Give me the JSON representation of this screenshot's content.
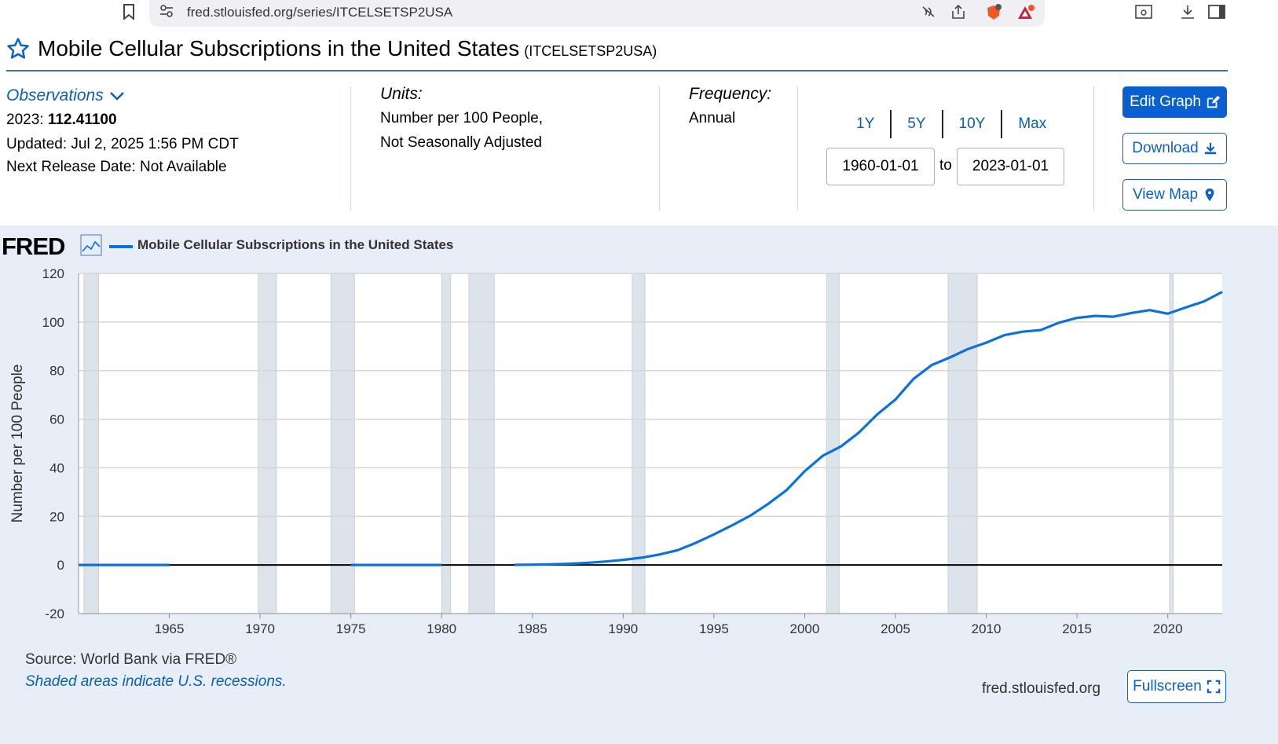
{
  "browser": {
    "url": "fred.stlouisfed.org/series/ITCELSETSP2USA"
  },
  "header": {
    "title": "Mobile Cellular Subscriptions in the United States",
    "series_id": "(ITCELSETSP2USA)"
  },
  "observations": {
    "label": "Observations",
    "latest_year": "2023:",
    "latest_value": "112.41100",
    "updated": "Updated: Jul 2, 2025 1:56 PM CDT",
    "next_release": "Next Release Date: Not Available"
  },
  "units": {
    "label": "Units:",
    "line1": "Number per 100 People,",
    "line2": "Not Seasonally Adjusted"
  },
  "frequency": {
    "label": "Frequency:",
    "value": "Annual"
  },
  "range": {
    "buttons": [
      "1Y",
      "5Y",
      "10Y",
      "Max"
    ],
    "start": "1960-01-01",
    "to": "to",
    "end": "2023-01-01"
  },
  "actions": {
    "edit": "Edit Graph",
    "download": "Download",
    "map": "View Map",
    "fullscreen": "Fullscreen"
  },
  "footer": {
    "source": "Source: World Bank via FRED®",
    "recession_note": "Shaded areas indicate U.S. recessions.",
    "site": "fred.stlouisfed.org"
  },
  "colors": {
    "accent": "#0a5fd1",
    "series": "#0b72d9",
    "panel": "#e7eef7",
    "recession": "#dde3ea"
  },
  "chart_data": {
    "type": "line",
    "legend": "Mobile Cellular Subscriptions in the United States",
    "ylabel": "Number per 100 People",
    "xlabel": "",
    "ylim": [
      -20,
      120
    ],
    "yticks": [
      120,
      100,
      80,
      60,
      40,
      20,
      0,
      -20
    ],
    "xlim": [
      1960,
      2023
    ],
    "xticks": [
      1965,
      1970,
      1975,
      1980,
      1985,
      1990,
      1995,
      2000,
      2005,
      2010,
      2015,
      2020
    ],
    "recessions": [
      [
        1960.3,
        1961.1
      ],
      [
        1969.9,
        1970.9
      ],
      [
        1973.9,
        1975.2
      ],
      [
        1980.0,
        1980.5
      ],
      [
        1981.5,
        1982.9
      ],
      [
        1990.5,
        1991.2
      ],
      [
        2001.2,
        2001.9
      ],
      [
        2007.9,
        2009.5
      ],
      [
        2020.1,
        2020.3
      ]
    ],
    "series": [
      {
        "name": "Mobile Cellular Subscriptions in the United States",
        "segments": [
          {
            "x": [
              1960,
              1965
            ],
            "y": [
              0,
              0
            ]
          },
          {
            "x": [
              1975,
              1980
            ],
            "y": [
              0,
              0
            ]
          },
          {
            "x": [
              1984,
              1985,
              1986,
              1987,
              1988,
              1989,
              1990,
              1991,
              1992,
              1993,
              1994,
              1995,
              1996,
              1997,
              1998,
              1999,
              2000,
              2001,
              2002,
              2003,
              2004,
              2005,
              2006,
              2007,
              2008,
              2009,
              2010,
              2011,
              2012,
              2013,
              2014,
              2015,
              2016,
              2017,
              2018,
              2019,
              2020,
              2021,
              2022,
              2023
            ],
            "y": [
              0.04,
              0.14,
              0.28,
              0.5,
              0.85,
              1.4,
              2.1,
              3.0,
              4.3,
              6.1,
              9.1,
              12.6,
              16.3,
              20.3,
              25.2,
              30.8,
              38.6,
              45.0,
              48.8,
              54.6,
              62.0,
              68.1,
              76.6,
              82.3,
              85.4,
              88.9,
              91.5,
              94.6,
              96.0,
              96.7,
              99.7,
              101.7,
              102.5,
              102.2,
              103.7,
              104.9,
              103.4,
              106.0,
              108.5,
              112.41
            ]
          }
        ]
      }
    ]
  }
}
